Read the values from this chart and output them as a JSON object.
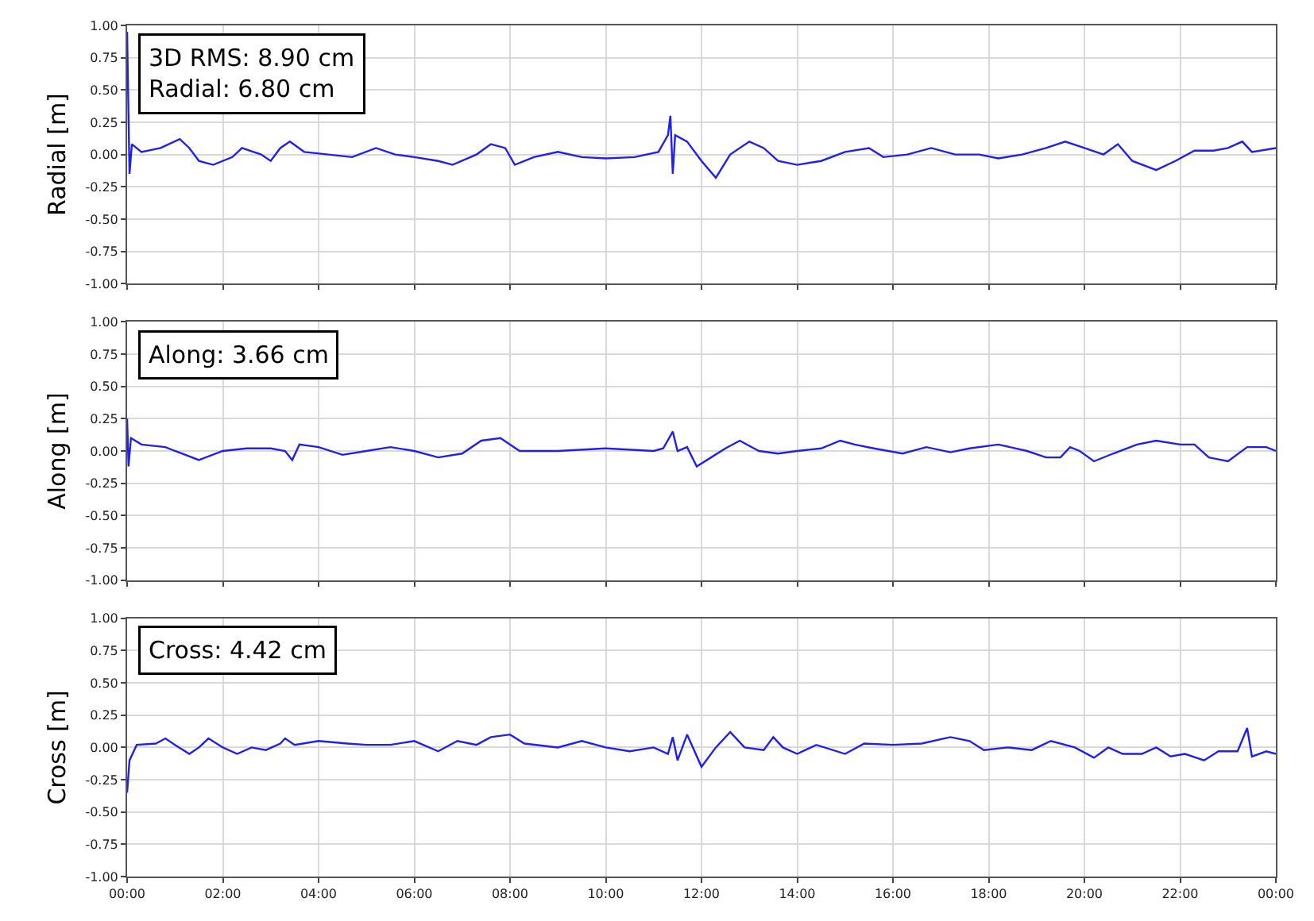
{
  "chart_data": [
    {
      "type": "line",
      "ylabel": "Radial [m]",
      "annotations": [
        "3D RMS: 8.90 cm\nRadial: 6.80 cm"
      ],
      "grid": true,
      "tick_labels": "y",
      "xlim": [
        0,
        24
      ],
      "xticks": [
        {
          "value": 0,
          "label": null
        },
        {
          "value": 2,
          "label": null
        },
        {
          "value": 4,
          "label": null
        },
        {
          "value": 6,
          "label": null
        },
        {
          "value": 8,
          "label": null
        },
        {
          "value": 10,
          "label": null
        },
        {
          "value": 12,
          "label": null
        },
        {
          "value": 14,
          "label": null
        },
        {
          "value": 16,
          "label": null
        },
        {
          "value": 18,
          "label": null
        },
        {
          "value": 20,
          "label": null
        },
        {
          "value": 22,
          "label": null
        },
        {
          "value": 24,
          "label": null
        }
      ],
      "ylim": [
        -1,
        1
      ],
      "yticks": [
        {
          "value": -1,
          "label": "-1.00"
        },
        {
          "value": -0.75,
          "label": "-0.75"
        },
        {
          "value": -0.5,
          "label": "-0.50"
        },
        {
          "value": -0.25,
          "label": "-0.25"
        },
        {
          "value": 0,
          "label": "0.00"
        },
        {
          "value": 0.25,
          "label": "0.25"
        },
        {
          "value": 0.5,
          "label": "0.50"
        },
        {
          "value": 0.75,
          "label": "0.75"
        },
        {
          "value": 1,
          "label": "1.00"
        }
      ],
      "x": [
        0,
        0.05,
        0.1,
        0.3,
        0.7,
        1.1,
        1.3,
        1.5,
        1.8,
        2.2,
        2.4,
        2.8,
        3.0,
        3.2,
        3.4,
        3.7,
        4.2,
        4.7,
        5.2,
        5.6,
        6.0,
        6.5,
        6.8,
        7.3,
        7.6,
        7.9,
        8.1,
        8.5,
        9.0,
        9.5,
        10.0,
        10.6,
        11.1,
        11.3,
        11.35,
        11.4,
        11.45,
        11.7,
        12.0,
        12.3,
        12.6,
        13.0,
        13.3,
        13.6,
        14.0,
        14.5,
        15.0,
        15.5,
        15.8,
        16.3,
        16.8,
        17.3,
        17.8,
        18.2,
        18.7,
        19.2,
        19.6,
        20.0,
        20.4,
        20.7,
        21.0,
        21.5,
        21.9,
        22.3,
        22.7,
        23.0,
        23.3,
        23.5,
        24.0
      ],
      "series": [
        {
          "color": "#2020ee",
          "values": [
            0.95,
            -0.15,
            0.08,
            0.02,
            0.05,
            0.12,
            0.05,
            -0.05,
            -0.08,
            -0.02,
            0.05,
            0.0,
            -0.05,
            0.05,
            0.1,
            0.02,
            0.0,
            -0.02,
            0.05,
            0.0,
            -0.02,
            -0.05,
            -0.08,
            0.0,
            0.08,
            0.05,
            -0.08,
            -0.02,
            0.02,
            -0.02,
            -0.03,
            -0.02,
            0.02,
            0.15,
            0.3,
            -0.15,
            0.15,
            0.1,
            -0.05,
            -0.18,
            0.0,
            0.1,
            0.05,
            -0.05,
            -0.08,
            -0.05,
            0.02,
            0.05,
            -0.02,
            0.0,
            0.05,
            0.0,
            0.0,
            -0.03,
            0.0,
            0.05,
            0.1,
            0.05,
            0.0,
            0.08,
            -0.05,
            -0.12,
            -0.05,
            0.03,
            0.03,
            0.05,
            0.1,
            0.02,
            0.05
          ]
        }
      ]
    },
    {
      "type": "line",
      "ylabel": "Along [m]",
      "annotations": [
        "Along: 3.66 cm"
      ],
      "grid": true,
      "tick_labels": "y",
      "xlim": [
        0,
        24
      ],
      "xticks": [
        {
          "value": 0,
          "label": null
        },
        {
          "value": 2,
          "label": null
        },
        {
          "value": 4,
          "label": null
        },
        {
          "value": 6,
          "label": null
        },
        {
          "value": 8,
          "label": null
        },
        {
          "value": 10,
          "label": null
        },
        {
          "value": 12,
          "label": null
        },
        {
          "value": 14,
          "label": null
        },
        {
          "value": 16,
          "label": null
        },
        {
          "value": 18,
          "label": null
        },
        {
          "value": 20,
          "label": null
        },
        {
          "value": 22,
          "label": null
        },
        {
          "value": 24,
          "label": null
        }
      ],
      "ylim": [
        -1,
        1
      ],
      "yticks": [
        {
          "value": -1,
          "label": "-1.00"
        },
        {
          "value": -0.75,
          "label": "-0.75"
        },
        {
          "value": -0.5,
          "label": "-0.50"
        },
        {
          "value": -0.25,
          "label": "-0.25"
        },
        {
          "value": 0,
          "label": "0.00"
        },
        {
          "value": 0.25,
          "label": "0.25"
        },
        {
          "value": 0.5,
          "label": "0.50"
        },
        {
          "value": 0.75,
          "label": "0.75"
        },
        {
          "value": 1,
          "label": "1.00"
        }
      ],
      "x": [
        0,
        0.03,
        0.08,
        0.3,
        0.8,
        1.0,
        1.5,
        2.0,
        2.5,
        3.0,
        3.3,
        3.45,
        3.6,
        4.0,
        4.5,
        5.0,
        5.5,
        6.0,
        6.5,
        7.0,
        7.4,
        7.8,
        8.2,
        9.0,
        10.0,
        11.0,
        11.2,
        11.4,
        11.5,
        11.7,
        11.9,
        12.2,
        12.5,
        12.8,
        13.2,
        13.6,
        14.0,
        14.5,
        14.9,
        15.2,
        15.6,
        16.2,
        16.7,
        17.2,
        17.6,
        18.2,
        18.8,
        19.2,
        19.5,
        19.7,
        19.9,
        20.2,
        20.6,
        21.1,
        21.5,
        22.0,
        22.3,
        22.6,
        23.0,
        23.4,
        23.8,
        24.0
      ],
      "series": [
        {
          "color": "#2020ee",
          "values": [
            0.25,
            -0.12,
            0.1,
            0.05,
            0.03,
            0.0,
            -0.07,
            0.0,
            0.02,
            0.02,
            0.0,
            -0.07,
            0.05,
            0.03,
            -0.03,
            0.0,
            0.03,
            0.0,
            -0.05,
            -0.02,
            0.08,
            0.1,
            0.0,
            0.0,
            0.02,
            0.0,
            0.02,
            0.15,
            0.0,
            0.03,
            -0.12,
            -0.05,
            0.02,
            0.08,
            0.0,
            -0.02,
            0.0,
            0.02,
            0.08,
            0.05,
            0.02,
            -0.02,
            0.03,
            -0.01,
            0.02,
            0.05,
            0.0,
            -0.05,
            -0.05,
            0.03,
            0.0,
            -0.08,
            -0.02,
            0.05,
            0.08,
            0.05,
            0.05,
            -0.05,
            -0.08,
            0.03,
            0.03,
            0.0
          ]
        }
      ]
    },
    {
      "type": "line",
      "ylabel": "Cross [m]",
      "annotations": [
        "Cross: 4.42 cm"
      ],
      "grid": true,
      "xlim": [
        0,
        24
      ],
      "xticks": [
        {
          "value": 0,
          "label": "00:00"
        },
        {
          "value": 2,
          "label": "02:00"
        },
        {
          "value": 4,
          "label": "04:00"
        },
        {
          "value": 6,
          "label": "06:00"
        },
        {
          "value": 8,
          "label": "08:00"
        },
        {
          "value": 10,
          "label": "10:00"
        },
        {
          "value": 12,
          "label": "12:00"
        },
        {
          "value": 14,
          "label": "14:00"
        },
        {
          "value": 16,
          "label": "16:00"
        },
        {
          "value": 18,
          "label": "18:00"
        },
        {
          "value": 20,
          "label": "20:00"
        },
        {
          "value": 22,
          "label": "22:00"
        },
        {
          "value": 24,
          "label": "00:00"
        }
      ],
      "ylim": [
        -1,
        1
      ],
      "yticks": [
        {
          "value": -1,
          "label": "-1.00"
        },
        {
          "value": -0.75,
          "label": "-0.75"
        },
        {
          "value": -0.5,
          "label": "-0.50"
        },
        {
          "value": -0.25,
          "label": "-0.25"
        },
        {
          "value": 0,
          "label": "0.00"
        },
        {
          "value": 0.25,
          "label": "0.25"
        },
        {
          "value": 0.5,
          "label": "0.50"
        },
        {
          "value": 0.75,
          "label": "0.75"
        },
        {
          "value": 1,
          "label": "1.00"
        }
      ],
      "x": [
        0,
        0.05,
        0.2,
        0.6,
        0.8,
        1.0,
        1.3,
        1.5,
        1.7,
        2.0,
        2.3,
        2.6,
        2.9,
        3.2,
        3.3,
        3.5,
        4.0,
        4.6,
        5.0,
        5.5,
        6.0,
        6.5,
        6.9,
        7.3,
        7.6,
        8.0,
        8.3,
        9.0,
        9.5,
        10.0,
        10.5,
        11.0,
        11.3,
        11.4,
        11.5,
        11.7,
        12.0,
        12.3,
        12.6,
        12.9,
        13.3,
        13.5,
        13.7,
        14.0,
        14.4,
        15.0,
        15.4,
        16.0,
        16.6,
        17.2,
        17.6,
        17.9,
        18.4,
        18.9,
        19.3,
        19.8,
        20.2,
        20.5,
        20.8,
        21.2,
        21.5,
        21.8,
        22.1,
        22.5,
        22.8,
        23.2,
        23.4,
        23.5,
        23.8,
        24.0
      ],
      "series": [
        {
          "color": "#2020ee",
          "values": [
            -0.35,
            -0.1,
            0.02,
            0.03,
            0.07,
            0.02,
            -0.05,
            0.0,
            0.07,
            0.0,
            -0.05,
            0.0,
            -0.02,
            0.03,
            0.07,
            0.02,
            0.05,
            0.03,
            0.02,
            0.02,
            0.05,
            -0.03,
            0.05,
            0.02,
            0.08,
            0.1,
            0.03,
            0.0,
            0.05,
            0.0,
            -0.03,
            0.0,
            -0.05,
            0.08,
            -0.1,
            0.1,
            -0.15,
            0.0,
            0.12,
            0.0,
            -0.02,
            0.08,
            0.0,
            -0.05,
            0.02,
            -0.05,
            0.03,
            0.02,
            0.03,
            0.08,
            0.05,
            -0.02,
            0.0,
            -0.02,
            0.05,
            0.0,
            -0.08,
            0.0,
            -0.05,
            -0.05,
            0.0,
            -0.07,
            -0.05,
            -0.1,
            -0.03,
            -0.03,
            0.15,
            -0.07,
            -0.03,
            -0.05
          ]
        }
      ]
    }
  ]
}
